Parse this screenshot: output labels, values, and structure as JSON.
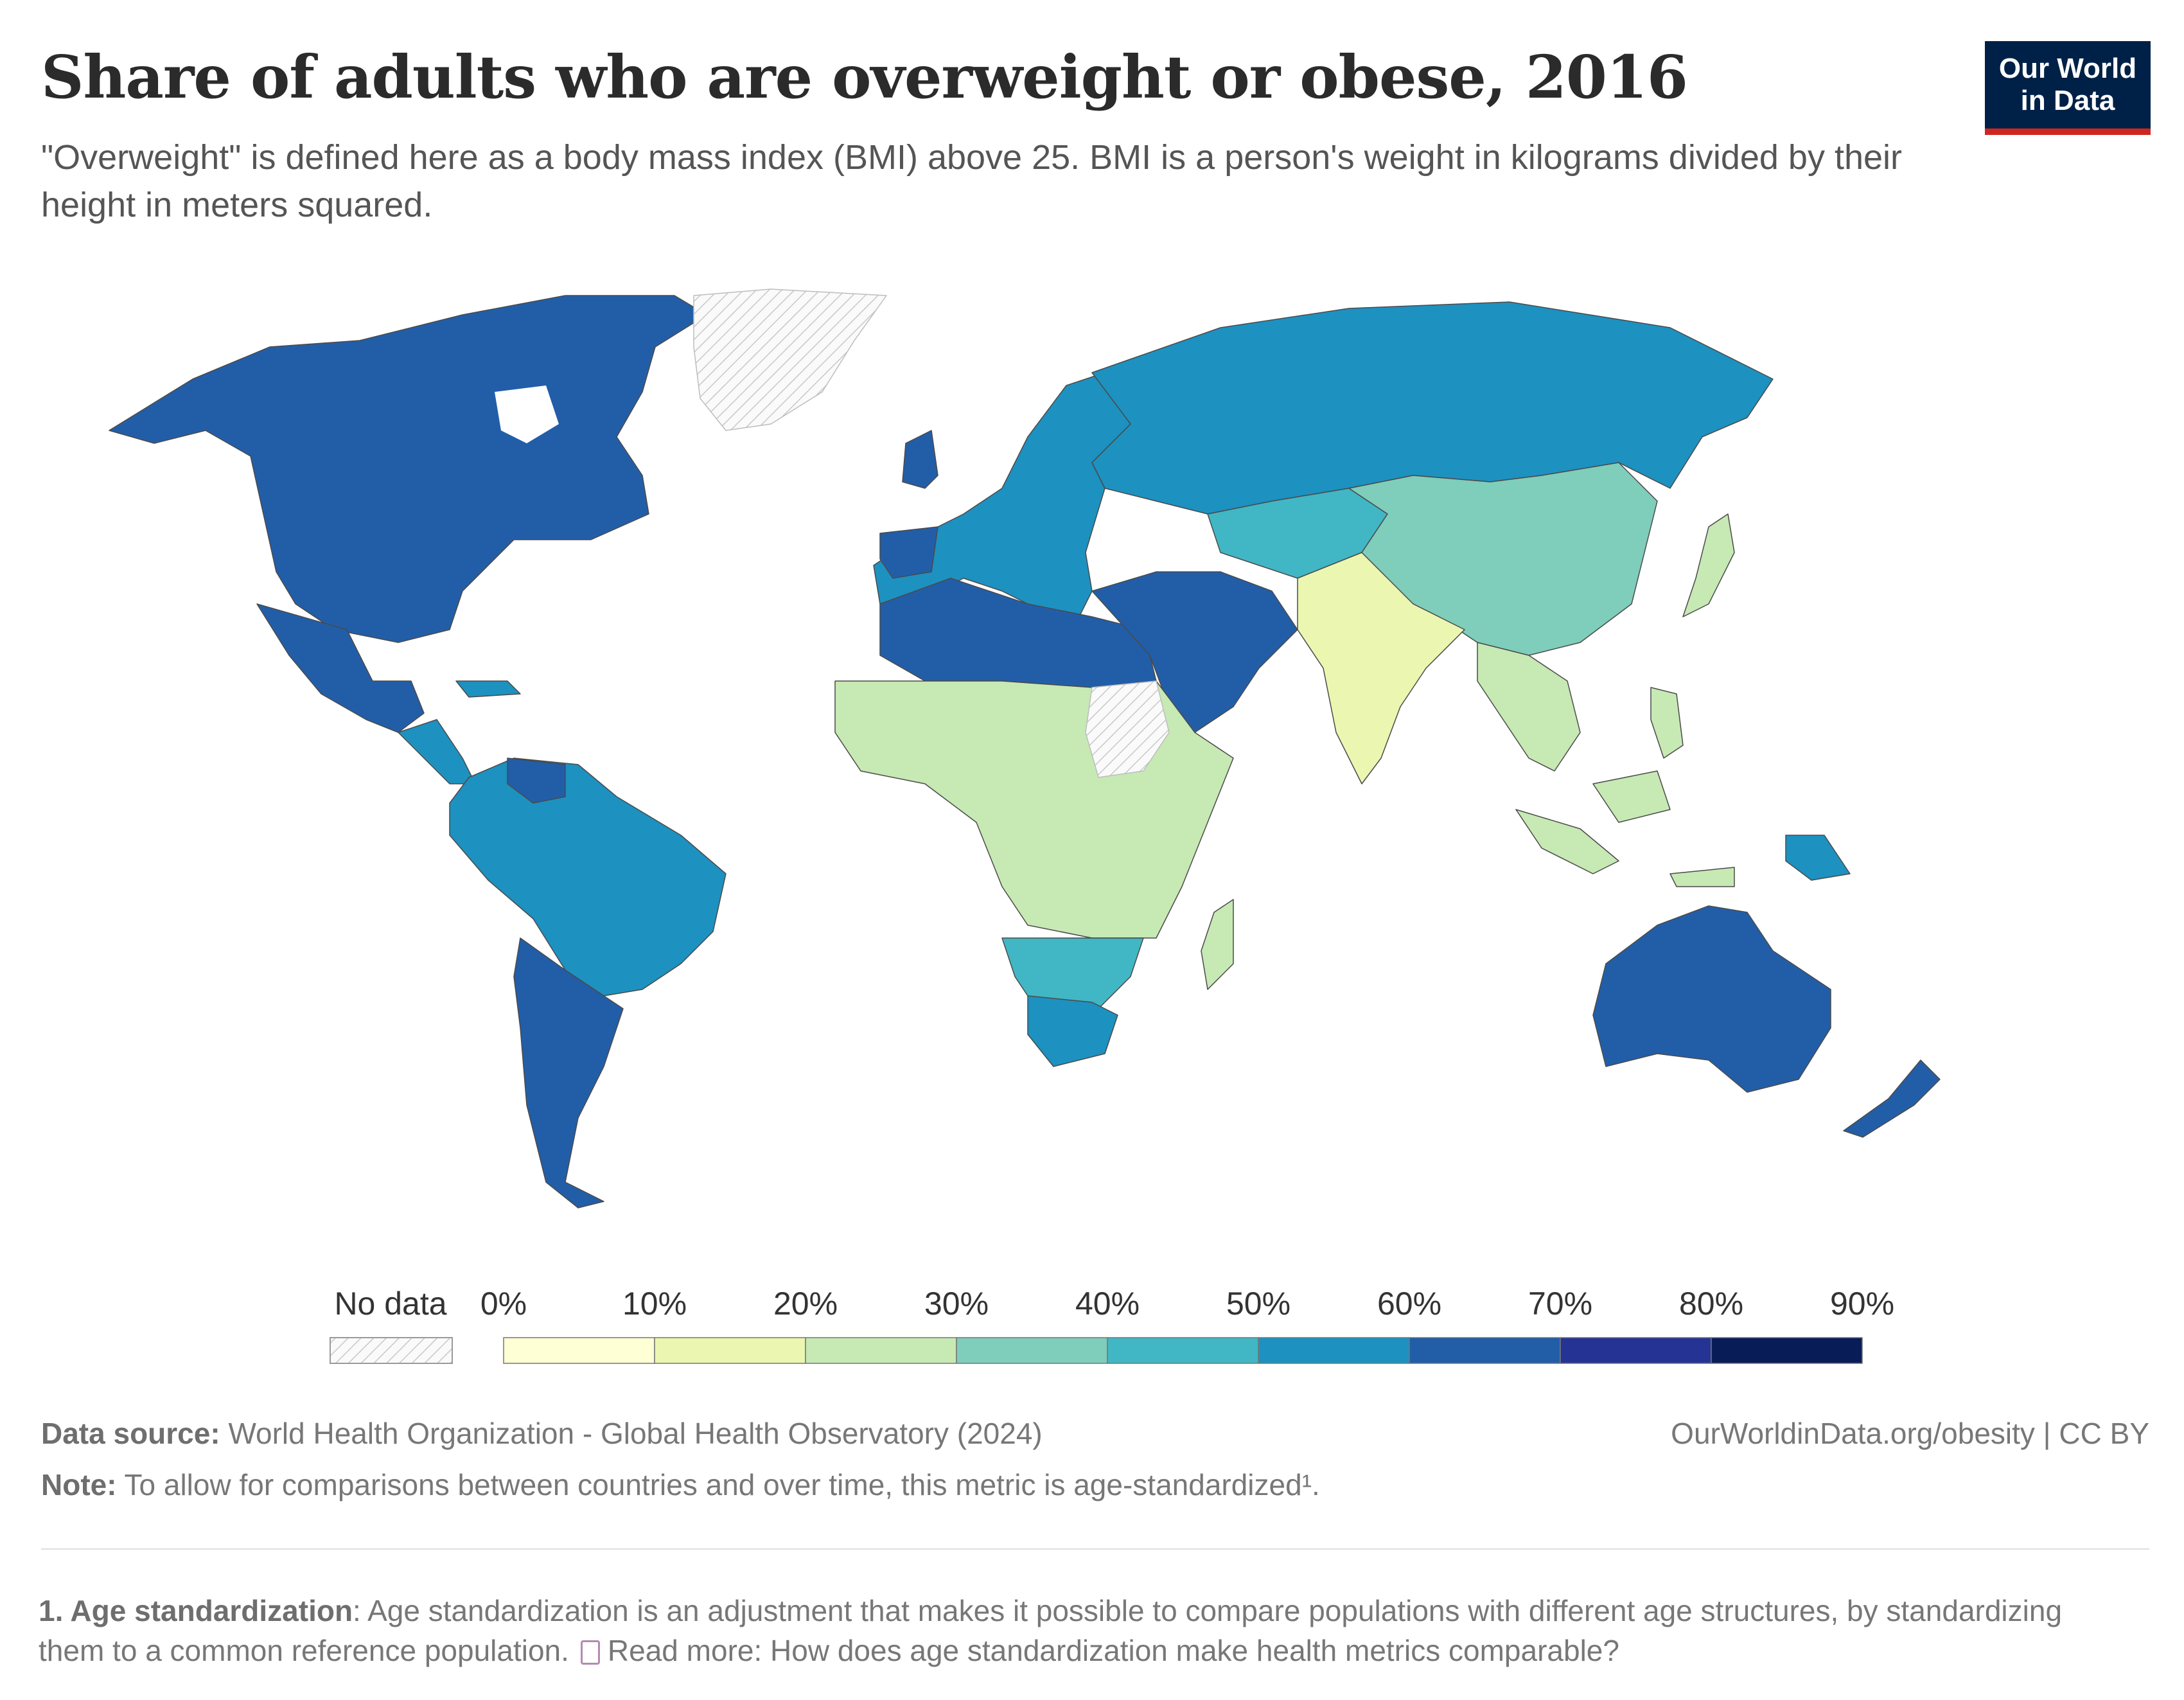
{
  "header": {
    "title": "Share of adults who are overweight or obese, 2016",
    "subtitle": "\"Overweight\" is defined here as a body mass index (BMI) above 25. BMI is a person's weight in kilograms divided by their height in meters squared."
  },
  "logo": {
    "line1": "Our World",
    "line2": "in Data"
  },
  "legend": {
    "no_data_label": "No data",
    "bins": [
      {
        "label": "0%",
        "color": "#feffd4"
      },
      {
        "label": "10%",
        "color": "#ebf6b0"
      },
      {
        "label": "20%",
        "color": "#c7e9b4"
      },
      {
        "label": "30%",
        "color": "#7fcdbb"
      },
      {
        "label": "40%",
        "color": "#41b6c4"
      },
      {
        "label": "50%",
        "color": "#1d91c0"
      },
      {
        "label": "60%",
        "color": "#225ea8"
      },
      {
        "label": "70%",
        "color": "#253494"
      },
      {
        "label": "80%",
        "color": "#081d58"
      }
    ],
    "last_label": "90%"
  },
  "map_data": {
    "type": "choropleth",
    "year": 2016,
    "regions": [
      {
        "name": "North America",
        "bin": "60-70%"
      },
      {
        "name": "Mexico",
        "bin": "60-70%"
      },
      {
        "name": "Central America",
        "bin": "50-60%"
      },
      {
        "name": "South America North",
        "bin": "50-60%"
      },
      {
        "name": "Argentina/Chile",
        "bin": "60-70%"
      },
      {
        "name": "Greenland",
        "bin": "No data"
      },
      {
        "name": "Europe",
        "bin": "50-60%"
      },
      {
        "name": "United Kingdom",
        "bin": "60-70%"
      },
      {
        "name": "Russia",
        "bin": "50-60%"
      },
      {
        "name": "North Africa",
        "bin": "60-70%"
      },
      {
        "name": "Middle East",
        "bin": "60-70%"
      },
      {
        "name": "Sahel/West Africa",
        "bin": "20-30%"
      },
      {
        "name": "Central/East Africa",
        "bin": "20-30%"
      },
      {
        "name": "Sudan",
        "bin": "No data"
      },
      {
        "name": "Southern Africa",
        "bin": "40-50%"
      },
      {
        "name": "South Africa",
        "bin": "50-60%"
      },
      {
        "name": "Madagascar",
        "bin": "20-30%"
      },
      {
        "name": "Central Asia",
        "bin": "40-50%"
      },
      {
        "name": "China",
        "bin": "30-40%"
      },
      {
        "name": "India",
        "bin": "10-20%"
      },
      {
        "name": "Southeast Asia",
        "bin": "20-30%"
      },
      {
        "name": "Japan",
        "bin": "20-30%"
      },
      {
        "name": "Indonesia",
        "bin": "20-30%"
      },
      {
        "name": "Papua New Guinea",
        "bin": "50-60%"
      },
      {
        "name": "Australia",
        "bin": "60-70%"
      },
      {
        "name": "New Zealand",
        "bin": "60-70%"
      }
    ]
  },
  "footer": {
    "source_label": "Data source:",
    "source_text": "World Health Organization - Global Health Observatory (2024)",
    "url": "OurWorldinData.org/obesity | CC BY",
    "note_label": "Note:",
    "note_text": "To allow for comparisons between countries and over time, this metric is age-standardized¹.",
    "footnote_label": "1. Age standardization",
    "footnote_text": ": Age standardization is an adjustment that makes it possible to compare populations with different age structures, by standardizing them to a common reference population.",
    "read_more": "Read more: How does age standardization make health metrics comparable?"
  }
}
